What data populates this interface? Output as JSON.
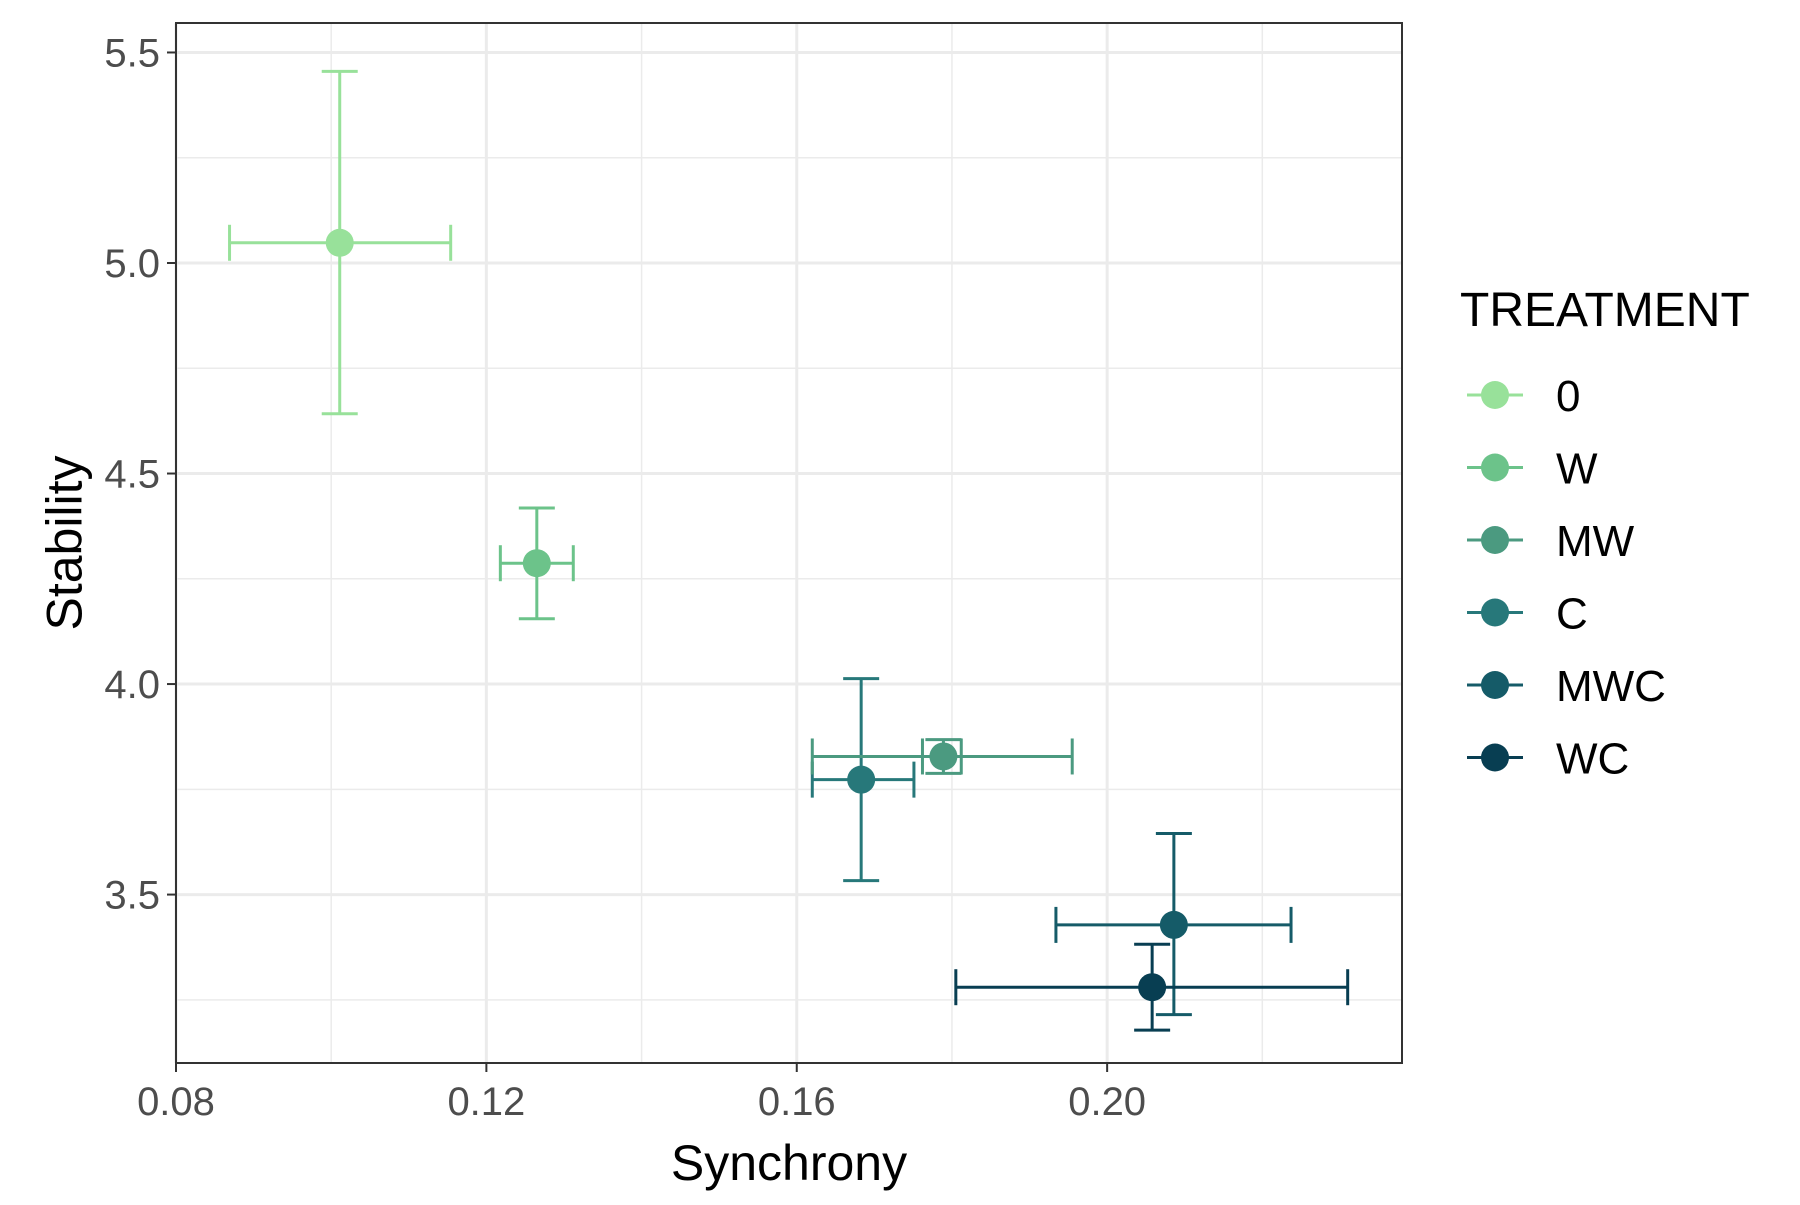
{
  "chart_data": {
    "type": "scatter",
    "title": "",
    "xlabel": "Synchrony",
    "ylabel": "Stability",
    "xlim": [
      0.08,
      0.238
    ],
    "ylim": [
      3.1,
      5.57
    ],
    "x_ticks": [
      {
        "value": 0.08,
        "label": "0.08"
      },
      {
        "value": 0.12,
        "label": "0.12"
      },
      {
        "value": 0.16,
        "label": "0.16"
      },
      {
        "value": 0.2,
        "label": "0.20"
      }
    ],
    "y_ticks": [
      {
        "value": 3.5,
        "label": "3.5"
      },
      {
        "value": 4.0,
        "label": "4.0"
      },
      {
        "value": 4.5,
        "label": "4.5"
      },
      {
        "value": 5.0,
        "label": "5.0"
      },
      {
        "value": 5.5,
        "label": "5.5"
      }
    ],
    "grid": true,
    "error_bars": true,
    "legend": {
      "title": "TREATMENT",
      "position": "right"
    },
    "series": [
      {
        "name": "0",
        "color": "#98e19a",
        "x": 0.1011,
        "y": 5.048,
        "x_err": [
          0.0869,
          0.1154
        ],
        "y_err": [
          4.642,
          5.455
        ]
      },
      {
        "name": "W",
        "color": "#6cc38a",
        "x": 0.1265,
        "y": 4.287,
        "x_err": [
          0.1218,
          0.1312
        ],
        "y_err": [
          4.155,
          4.418
        ]
      },
      {
        "name": "MW",
        "color": "#4b9a80",
        "x": 0.1789,
        "y": 3.828,
        "x_err": [
          0.1762,
          0.1812
        ],
        "y_err": [
          3.788,
          3.868
        ]
      },
      {
        "name": "C",
        "color": "#27787a",
        "x": 0.1683,
        "y": 3.773,
        "x_err": [
          0.162,
          0.1751
        ],
        "y_err": [
          3.533,
          4.013
        ]
      },
      {
        "name": "MWC",
        "color": "#155b68",
        "x": 0.2086,
        "y": 3.428,
        "x_err": [
          0.1934,
          0.2237
        ],
        "y_err": [
          3.215,
          3.645
        ]
      },
      {
        "name": "WC",
        "color": "#083e52",
        "x": 0.2058,
        "y": 3.28,
        "x_err": [
          0.1805,
          0.231
        ],
        "y_err": [
          3.178,
          3.382
        ]
      }
    ],
    "extra_bars": [
      {
        "series": "MW",
        "orientation": "horizontal",
        "y": 3.828,
        "range": [
          0.162,
          0.1955
        ]
      }
    ]
  }
}
